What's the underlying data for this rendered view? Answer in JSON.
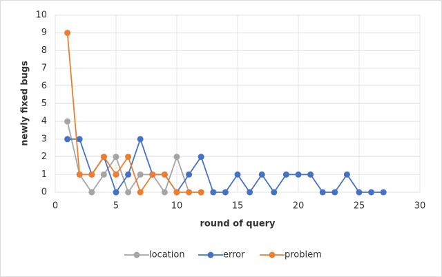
{
  "chart_data": {
    "type": "line",
    "x_label": "round of query",
    "y_label": "newly fixed bugs",
    "xlim": [
      0,
      30
    ],
    "xticks": [
      0,
      5,
      10,
      15,
      20,
      25,
      30
    ],
    "ylim": [
      0,
      10
    ],
    "yticks": [
      0,
      1,
      2,
      3,
      4,
      5,
      6,
      7,
      8,
      9,
      10
    ],
    "grid": true,
    "legend": "bottom",
    "series": [
      {
        "name": "location",
        "color": "#a5a5a5",
        "x": [
          1,
          2,
          3,
          4,
          5,
          6,
          7,
          8,
          9,
          10,
          11,
          12
        ],
        "values": [
          4,
          1,
          0,
          1,
          2,
          0,
          1,
          1,
          0,
          2,
          0,
          0
        ]
      },
      {
        "name": "error",
        "color": "#4472c4",
        "x": [
          1,
          2,
          3,
          4,
          5,
          6,
          7,
          8,
          9,
          10,
          11,
          12,
          13,
          14,
          15,
          16,
          17,
          18,
          19,
          20,
          21,
          22,
          23,
          24,
          25,
          26,
          27
        ],
        "values": [
          3,
          3,
          1,
          2,
          0,
          1,
          3,
          1,
          1,
          0,
          1,
          2,
          0,
          0,
          1,
          0,
          1,
          0,
          1,
          1,
          1,
          0,
          0,
          1,
          0,
          0,
          0
        ]
      },
      {
        "name": "problem",
        "color": "#ed7d31",
        "x": [
          1,
          2,
          3,
          4,
          5,
          6,
          7,
          8,
          9,
          10,
          11,
          12
        ],
        "values": [
          9,
          1,
          1,
          2,
          1,
          2,
          0,
          1,
          1,
          0,
          0,
          0
        ]
      }
    ]
  }
}
